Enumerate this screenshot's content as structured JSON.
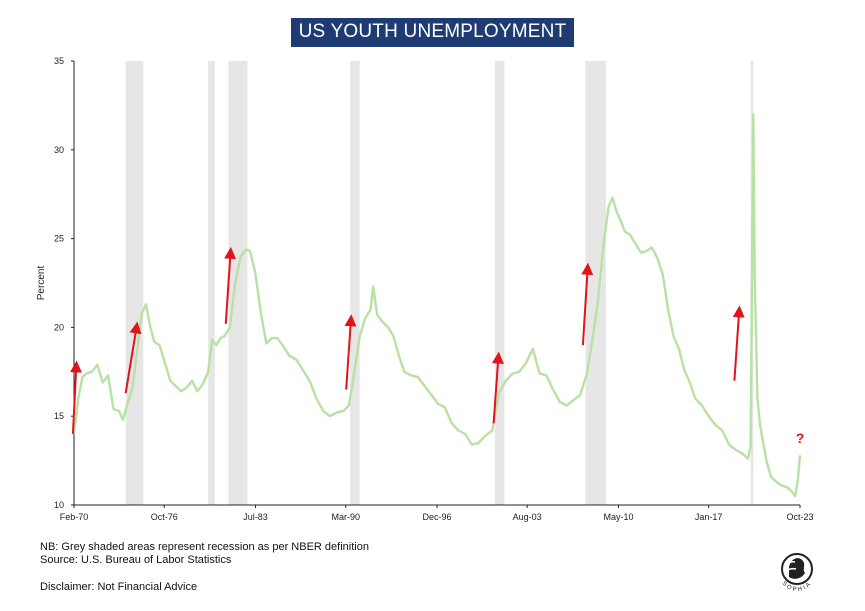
{
  "title": "US YOUTH UNEMPLOYMENT",
  "notes": {
    "line1": "NB: Grey shaded areas represent recession as per NBER definition",
    "line2": "Source: U.S. Bureau of Labor Statistics",
    "disclaimer": "Disclaimer: Not Financial Advice"
  },
  "logo_text": "SOPHIA",
  "colors": {
    "line": "#b9e0a5",
    "recession": "#e6e6e6",
    "arrow": "#e0141a",
    "title_bg": "#1f3b73"
  },
  "chart_data": {
    "type": "line",
    "title": "US YOUTH UNEMPLOYMENT",
    "xlabel": "",
    "ylabel": "Percent",
    "ylim": [
      10,
      35
    ],
    "yticks": [
      10,
      15,
      20,
      25,
      30,
      35
    ],
    "xlim": [
      1970.08,
      2023.75
    ],
    "xticks": [
      {
        "label": "Feb-70",
        "t": 1970.08
      },
      {
        "label": "Oct-76",
        "t": 1976.75
      },
      {
        "label": "Jul-83",
        "t": 1983.5
      },
      {
        "label": "Mar-90",
        "t": 1990.17
      },
      {
        "label": "Dec-96",
        "t": 1996.92
      },
      {
        "label": "Aug-03",
        "t": 2003.58
      },
      {
        "label": "May-10",
        "t": 2010.33
      },
      {
        "label": "Jan-17",
        "t": 2017.0
      },
      {
        "label": "Oct-23",
        "t": 2023.75
      }
    ],
    "recessions": [
      [
        1973.9,
        1975.2
      ],
      [
        1980.0,
        1980.5
      ],
      [
        1981.5,
        1982.9
      ],
      [
        1990.5,
        1991.2
      ],
      [
        2001.2,
        2001.9
      ],
      [
        2007.9,
        2009.4
      ],
      [
        2020.1,
        2020.3
      ]
    ],
    "series": [
      {
        "name": "",
        "x": [
          1970.08,
          1970.4,
          1970.7,
          1971.0,
          1971.4,
          1971.8,
          1972.2,
          1972.6,
          1973.0,
          1973.4,
          1973.7,
          1974.0,
          1974.4,
          1974.8,
          1975.1,
          1975.4,
          1975.7,
          1976.0,
          1976.4,
          1976.8,
          1977.2,
          1977.6,
          1978.0,
          1978.4,
          1978.8,
          1979.2,
          1979.6,
          1980.0,
          1980.3,
          1980.6,
          1980.9,
          1981.2,
          1981.6,
          1982.0,
          1982.4,
          1982.8,
          1983.1,
          1983.5,
          1983.9,
          1984.3,
          1984.7,
          1985.1,
          1985.5,
          1986.0,
          1986.5,
          1987.0,
          1987.5,
          1988.0,
          1988.5,
          1989.0,
          1989.5,
          1990.0,
          1990.4,
          1990.8,
          1991.2,
          1991.6,
          1992.0,
          1992.2,
          1992.5,
          1992.9,
          1993.3,
          1993.7,
          1994.1,
          1994.5,
          1995.0,
          1995.5,
          1996.0,
          1996.5,
          1997.0,
          1997.5,
          1998.0,
          1998.5,
          1999.0,
          1999.5,
          2000.0,
          2000.5,
          2001.0,
          2001.5,
          2002.0,
          2002.5,
          2003.0,
          2003.5,
          2004.0,
          2004.5,
          2005.0,
          2005.5,
          2006.0,
          2006.5,
          2007.0,
          2007.5,
          2008.0,
          2008.4,
          2008.8,
          2009.2,
          2009.6,
          2009.9,
          2010.2,
          2010.5,
          2010.8,
          2011.2,
          2011.6,
          2012.0,
          2012.4,
          2012.8,
          2013.2,
          2013.6,
          2014.0,
          2014.4,
          2014.8,
          2015.2,
          2015.6,
          2016.0,
          2016.5,
          2017.0,
          2017.5,
          2018.0,
          2018.5,
          2019.0,
          2019.5,
          2019.9,
          2020.1,
          2020.3,
          2020.4,
          2020.6,
          2020.8,
          2021.0,
          2021.3,
          2021.6,
          2022.0,
          2022.4,
          2022.8,
          2023.1,
          2023.4,
          2023.6,
          2023.75
        ],
        "values": [
          14.0,
          16.0,
          17.2,
          17.4,
          17.5,
          17.9,
          16.9,
          17.3,
          15.4,
          15.3,
          14.8,
          15.6,
          16.6,
          19.0,
          20.8,
          21.3,
          20.1,
          19.2,
          19.0,
          18.0,
          17.0,
          16.7,
          16.4,
          16.6,
          17.0,
          16.4,
          16.8,
          17.5,
          19.3,
          19.0,
          19.4,
          19.5,
          20.0,
          22.5,
          24.0,
          24.4,
          24.3,
          23.0,
          20.8,
          19.1,
          19.4,
          19.4,
          19.0,
          18.4,
          18.2,
          17.6,
          17.0,
          16.0,
          15.3,
          15.0,
          15.2,
          15.3,
          15.6,
          17.5,
          19.5,
          20.5,
          21.0,
          22.3,
          20.7,
          20.3,
          20.0,
          19.5,
          18.4,
          17.5,
          17.3,
          17.2,
          16.7,
          16.2,
          15.7,
          15.5,
          14.6,
          14.2,
          14.0,
          13.4,
          13.5,
          13.9,
          14.2,
          16.3,
          17.0,
          17.4,
          17.5,
          18.0,
          18.8,
          17.4,
          17.3,
          16.5,
          15.8,
          15.6,
          15.9,
          16.2,
          17.4,
          19.3,
          21.4,
          24.5,
          26.8,
          27.3,
          26.5,
          26.0,
          25.4,
          25.2,
          24.7,
          24.2,
          24.3,
          24.5,
          23.9,
          23.0,
          21.0,
          19.5,
          18.8,
          17.6,
          16.9,
          16.0,
          15.6,
          15.0,
          14.5,
          14.2,
          13.4,
          13.1,
          12.9,
          12.6,
          13.3,
          32.0,
          23.0,
          16.0,
          14.5,
          13.6,
          12.4,
          11.6,
          11.3,
          11.1,
          11.0,
          10.8,
          10.5,
          11.5,
          12.8
        ]
      }
    ],
    "arrows": [
      {
        "from": [
          1970.0,
          14.0
        ],
        "to": [
          1970.25,
          17.8
        ]
      },
      {
        "from": [
          1973.9,
          16.3
        ],
        "to": [
          1974.7,
          20.0
        ]
      },
      {
        "from": [
          1981.3,
          20.2
        ],
        "to": [
          1981.65,
          24.2
        ]
      },
      {
        "from": [
          1990.2,
          16.5
        ],
        "to": [
          1990.55,
          20.4
        ]
      },
      {
        "from": [
          2001.1,
          14.6
        ],
        "to": [
          2001.45,
          18.3
        ]
      },
      {
        "from": [
          2007.7,
          19.0
        ],
        "to": [
          2008.05,
          23.3
        ]
      },
      {
        "from": [
          2018.9,
          17.0
        ],
        "to": [
          2019.25,
          20.9
        ]
      }
    ],
    "annotation": "?"
  }
}
